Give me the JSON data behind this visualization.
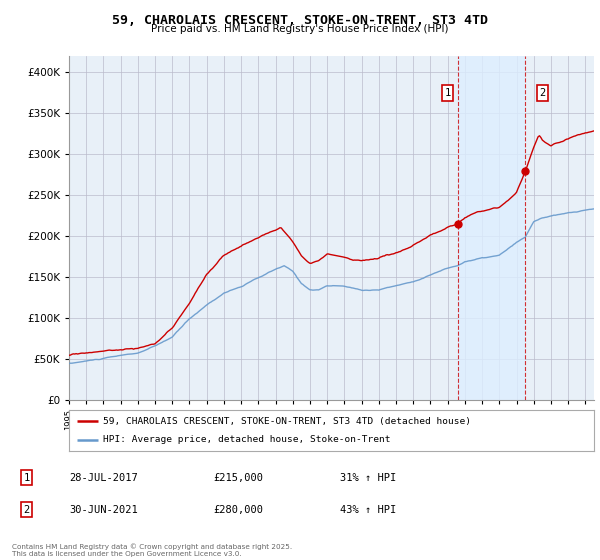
{
  "title": "59, CHAROLAIS CRESCENT, STOKE-ON-TRENT, ST3 4TD",
  "subtitle": "Price paid vs. HM Land Registry's House Price Index (HPI)",
  "legend_line1": "59, CHAROLAIS CRESCENT, STOKE-ON-TRENT, ST3 4TD (detached house)",
  "legend_line2": "HPI: Average price, detached house, Stoke-on-Trent",
  "annotation1_label": "1",
  "annotation1_date": "28-JUL-2017",
  "annotation1_price": "£215,000",
  "annotation1_hpi": "31% ↑ HPI",
  "annotation2_label": "2",
  "annotation2_date": "30-JUN-2021",
  "annotation2_price": "£280,000",
  "annotation2_hpi": "43% ↑ HPI",
  "footer": "Contains HM Land Registry data © Crown copyright and database right 2025.\nThis data is licensed under the Open Government Licence v3.0.",
  "red_color": "#cc0000",
  "blue_color": "#6699cc",
  "highlight_color": "#ddeeff",
  "background_color": "#e8f0f8",
  "grid_color": "#bbbbcc",
  "sale1_x": 2017.58,
  "sale1_y": 215000,
  "sale2_x": 2021.5,
  "sale2_y": 280000,
  "ylim": [
    0,
    420000
  ],
  "xlim_start": 1995,
  "xlim_end": 2025.5
}
